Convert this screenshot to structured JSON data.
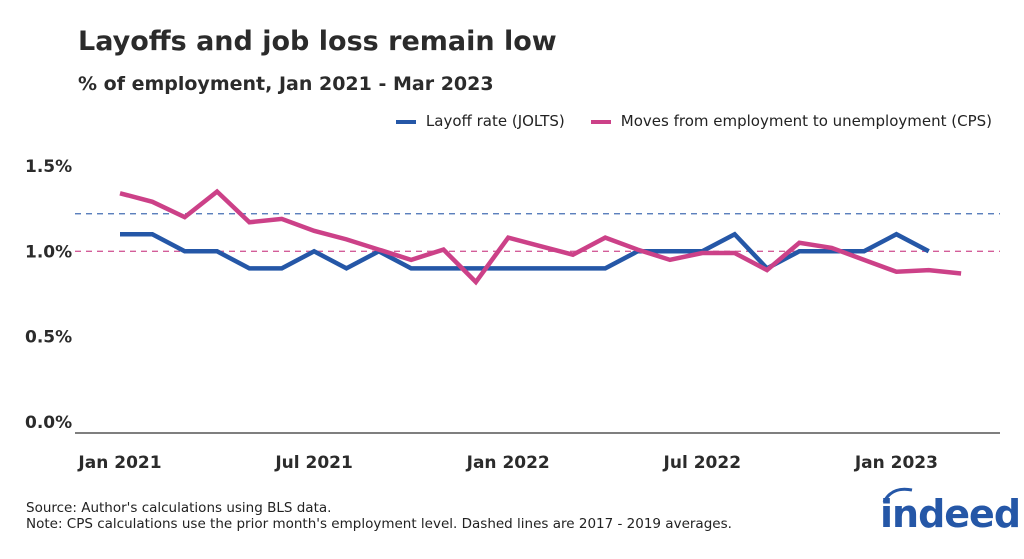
{
  "chart_data": {
    "type": "line",
    "title": "Layoffs and job loss remain low",
    "subtitle": "% of employment, Jan 2021 - Mar 2023",
    "x": [
      "Jan 2021",
      "Feb 2021",
      "Mar 2021",
      "Apr 2021",
      "May 2021",
      "Jun 2021",
      "Jul 2021",
      "Aug 2021",
      "Sep 2021",
      "Oct 2021",
      "Nov 2021",
      "Dec 2021",
      "Jan 2022",
      "Feb 2022",
      "Mar 2022",
      "Apr 2022",
      "May 2022",
      "Jun 2022",
      "Jul 2022",
      "Aug 2022",
      "Sep 2022",
      "Oct 2022",
      "Nov 2022",
      "Dec 2022",
      "Jan 2023",
      "Feb 2023",
      "Mar 2023"
    ],
    "x_tick_labels": [
      {
        "index": 0,
        "label": "Jan 2021"
      },
      {
        "index": 6,
        "label": "Jul 2021"
      },
      {
        "index": 12,
        "label": "Jan 2022"
      },
      {
        "index": 18,
        "label": "Jul 2022"
      },
      {
        "index": 24,
        "label": "Jan 2023"
      }
    ],
    "y_ticks": [
      {
        "value": 0,
        "label": "0.0%"
      },
      {
        "value": 0.5,
        "label": "0.5%"
      },
      {
        "value": 1.0,
        "label": "1.0%"
      },
      {
        "value": 1.5,
        "label": "1.5%"
      }
    ],
    "ylim": [
      0,
      1.6
    ],
    "legend_position": "top-right",
    "series": [
      {
        "name": "Layoff rate (JOLTS)",
        "color": "#2557a7",
        "average": 1.22,
        "values": [
          1.1,
          1.1,
          1.0,
          1.0,
          0.9,
          0.9,
          1.0,
          0.9,
          1.0,
          0.9,
          0.9,
          0.9,
          0.9,
          0.9,
          0.9,
          0.9,
          1.0,
          1.0,
          1.0,
          1.1,
          0.9,
          1.0,
          1.0,
          1.0,
          1.1,
          1.0,
          null
        ]
      },
      {
        "name": "Moves from employment to unemployment (CPS)",
        "color": "#cc4188",
        "average": 1.0,
        "values": [
          1.34,
          1.29,
          1.2,
          1.35,
          1.17,
          1.19,
          1.12,
          1.07,
          1.01,
          0.95,
          1.01,
          0.82,
          1.08,
          1.03,
          0.98,
          1.08,
          1.01,
          0.95,
          0.99,
          0.99,
          0.89,
          1.05,
          1.02,
          0.95,
          0.88,
          0.89,
          0.87
        ]
      }
    ]
  },
  "footer": {
    "source": "Source: Author's calculations using BLS data.",
    "note": "Note: CPS calculations use the prior month's employment level. Dashed lines are 2017 - 2019 averages."
  },
  "logo": {
    "text": "indeed"
  }
}
